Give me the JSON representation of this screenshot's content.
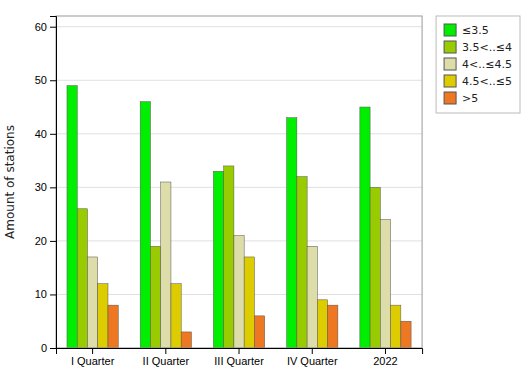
{
  "chart_data": {
    "type": "bar",
    "categories": [
      "I Quarter",
      "II Quarter",
      "III Quarter",
      "IV Quarter",
      "2022"
    ],
    "series": [
      {
        "name": "≤3.5",
        "color": "#00ee00",
        "values": [
          49,
          46,
          33,
          43,
          45
        ]
      },
      {
        "name": "3.5<..≤4",
        "color": "#99cc00",
        "values": [
          26,
          19,
          34,
          32,
          30
        ]
      },
      {
        "name": "4<..≤4.5",
        "color": "#ddddaa",
        "values": [
          17,
          31,
          21,
          19,
          24
        ]
      },
      {
        "name": "4.5<..≤5",
        "color": "#ddcc00",
        "values": [
          12,
          12,
          17,
          9,
          8
        ]
      },
      {
        "name": ">5",
        "color": "#ee7722",
        "values": [
          8,
          3,
          6,
          8,
          5
        ]
      }
    ],
    "ylabel": "Amount of stations",
    "ylim": [
      0,
      62
    ],
    "yticks": [
      0,
      10,
      20,
      30,
      40,
      50,
      60
    ],
    "grid": true,
    "legend": "upper right"
  }
}
